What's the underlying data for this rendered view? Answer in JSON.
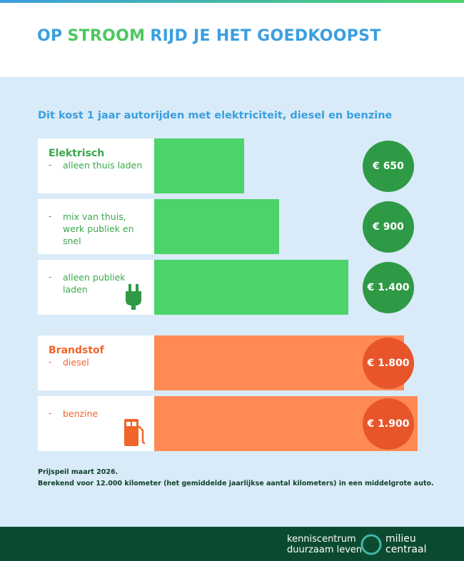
{
  "chart_data": {
    "type": "bar",
    "orientation": "horizontal",
    "title": {
      "before": "OP",
      "highlight": "STROOM",
      "after": "RIJD JE HET GOEDKOOPST"
    },
    "subtitle": "Dit kost 1 jaar autorijden met elektriciteit, diesel en benzine",
    "xlim": [
      0,
      1900
    ],
    "groups": [
      {
        "name": "Elektrisch",
        "color": "#4cd36a",
        "text_color": "#3aa84a",
        "circle_color": "#2f9a46",
        "categories": [
          "alleen thuis laden",
          "mix van thuis, werk publiek en snel",
          "alleen publiek laden"
        ],
        "values": [
          650,
          900,
          1400
        ],
        "value_labels": [
          "€ 650",
          "€ 900",
          "€ 1.400"
        ]
      },
      {
        "name": "Brandstof",
        "color": "#ff8a55",
        "text_color": "#f0652a",
        "circle_color": "#e8552a",
        "categories": [
          "diesel",
          "benzine"
        ],
        "values": [
          1800,
          1900
        ],
        "value_labels": [
          "€ 1.800",
          "€ 1.900"
        ]
      }
    ],
    "notes": [
      "Prijspeil maart 2026.",
      "Berekend voor 12.000 kilometer (het gemiddelde jaarlijkse aantal kilometers) in een middelgrote auto."
    ],
    "logo": {
      "left": [
        "kenniscentrum",
        "duurzaam leven"
      ],
      "right": [
        "milieu",
        "centraal"
      ]
    }
  }
}
